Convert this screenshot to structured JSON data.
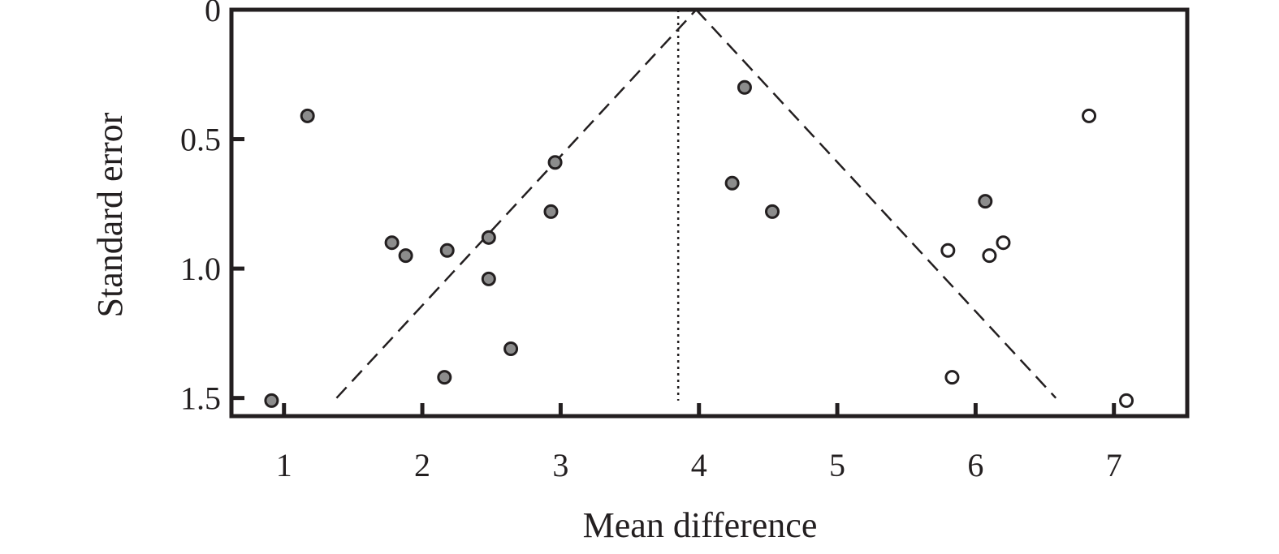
{
  "chart_data": {
    "type": "scatter",
    "title": "",
    "xlabel": "Mean difference",
    "ylabel": "Standard error",
    "xlim": [
      0.62,
      7.53
    ],
    "ylim": [
      0,
      1.57
    ],
    "y_inverted": true,
    "x_ticks": [
      1,
      2,
      3,
      4,
      5,
      6,
      7
    ],
    "x_tick_labels": [
      "1",
      "2",
      "3",
      "4",
      "5",
      "6",
      "7"
    ],
    "y_ticks": [
      0,
      0.5,
      1.0,
      1.5
    ],
    "y_tick_labels": [
      "0",
      "0.5",
      "1.0",
      "1.5"
    ],
    "grid": false,
    "legend": "none",
    "pooled_estimate": 3.85,
    "funnel_limits": {
      "apex": [
        3.98,
        0
      ],
      "left_base": [
        1.38,
        1.5
      ],
      "right_base": [
        6.58,
        1.5
      ]
    },
    "series": [
      {
        "marker": "filled-gray",
        "points": [
          [
            0.91,
            1.51
          ],
          [
            1.17,
            0.41
          ],
          [
            1.78,
            0.9
          ],
          [
            1.88,
            0.95
          ],
          [
            2.18,
            0.93
          ],
          [
            2.48,
            0.88
          ],
          [
            2.48,
            1.04
          ],
          [
            2.16,
            1.42
          ],
          [
            2.64,
            1.31
          ],
          [
            2.93,
            0.78
          ],
          [
            2.96,
            0.59
          ],
          [
            4.33,
            0.3
          ],
          [
            4.24,
            0.67
          ],
          [
            4.53,
            0.78
          ],
          [
            6.07,
            0.74
          ]
        ]
      },
      {
        "marker": "open",
        "points": [
          [
            6.82,
            0.41
          ],
          [
            5.8,
            0.93
          ],
          [
            6.1,
            0.95
          ],
          [
            6.2,
            0.9
          ],
          [
            5.83,
            1.42
          ],
          [
            7.09,
            1.51
          ]
        ]
      }
    ],
    "colors": {
      "axis": "#231f20",
      "filled_marker": "#8c8c8c",
      "open_marker": "#ffffff"
    }
  }
}
